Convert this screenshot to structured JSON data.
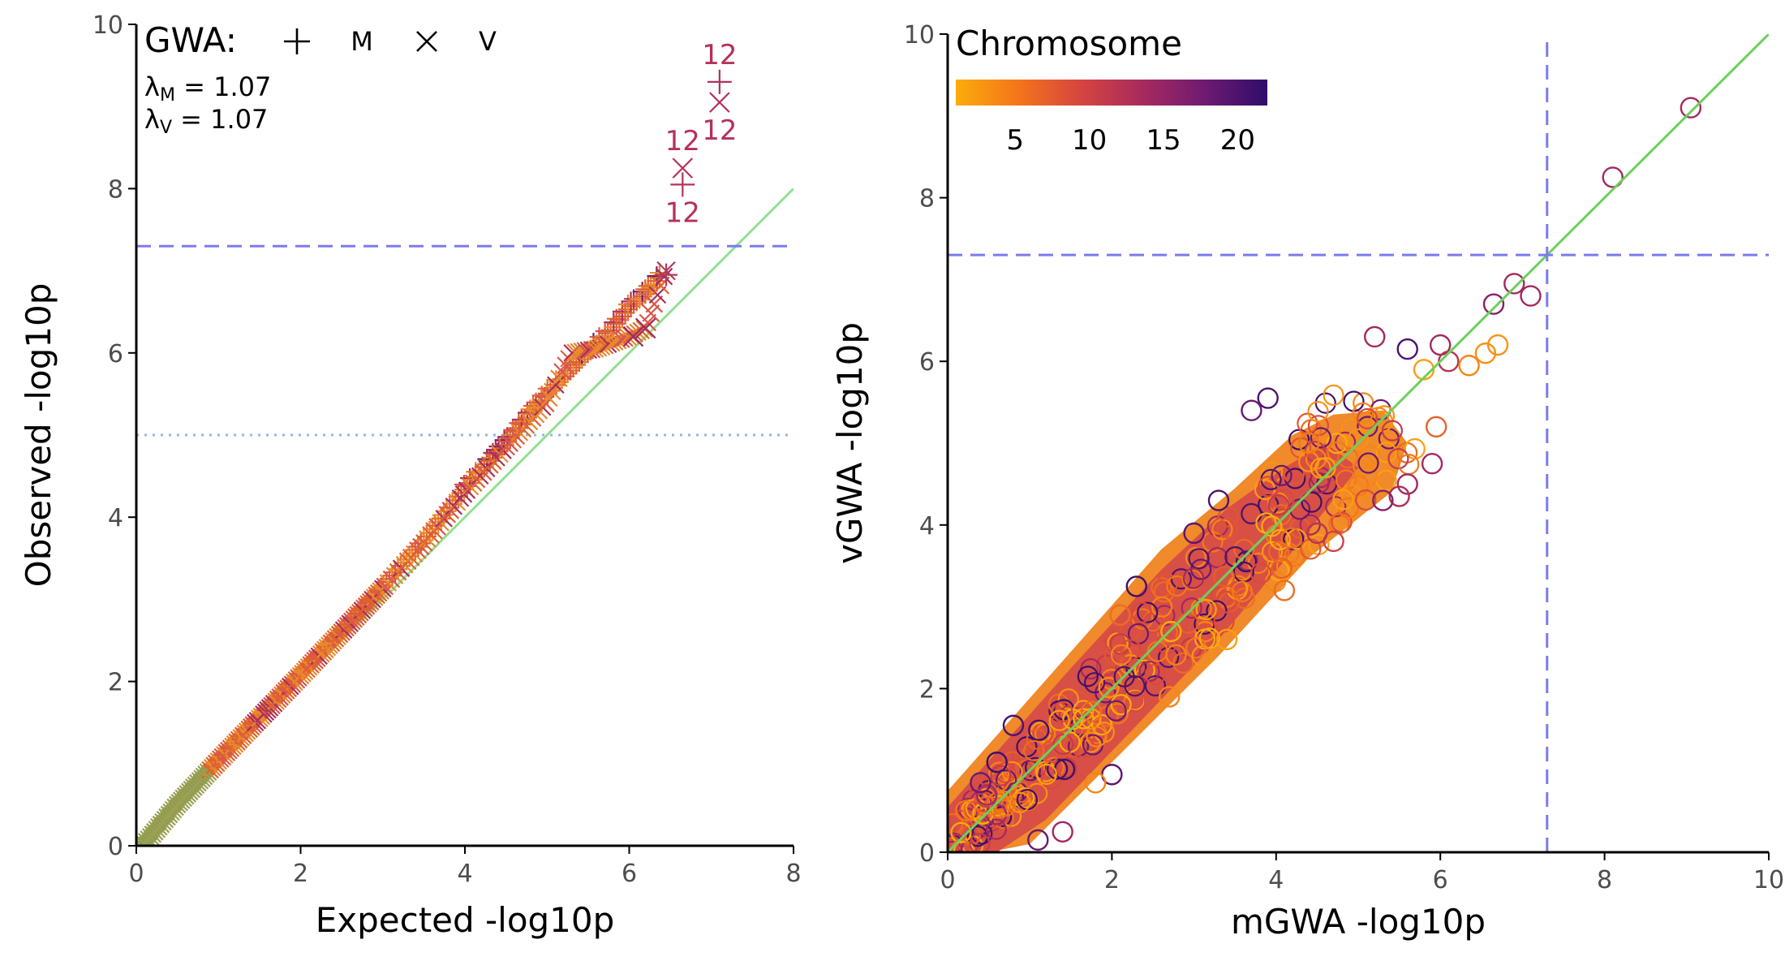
{
  "chart_data": [
    {
      "type": "scatter",
      "subtype": "qq-plot",
      "xlabel": "Expected -log10p",
      "ylabel": "Observed -log10p",
      "xlim": [
        0,
        8
      ],
      "ylim": [
        0,
        10
      ],
      "xticks": [
        "0",
        "2",
        "4",
        "6",
        "8"
      ],
      "yticks": [
        "0",
        "2",
        "4",
        "6",
        "8",
        "10"
      ],
      "legend": {
        "title": "GWA:",
        "entries": [
          {
            "symbol": "+",
            "label": "M"
          },
          {
            "symbol": "×",
            "label": "V"
          }
        ],
        "placement": "top-left"
      },
      "lambda_m": "1.07",
      "lambda_v": "1.07",
      "reference_lines": [
        {
          "type": "diagonal",
          "color": "#90e090"
        },
        {
          "type": "horizontal",
          "y": 7.3,
          "style": "dashed",
          "color": "#7b7bef"
        },
        {
          "type": "horizontal",
          "y": 5.0,
          "style": "dotted",
          "color": "#93b6ea"
        }
      ],
      "series_m": [
        [
          0.2,
          0.16
        ],
        [
          0.5,
          0.52
        ],
        [
          1.0,
          1.05
        ],
        [
          1.5,
          1.58
        ],
        [
          2.0,
          2.1
        ],
        [
          2.5,
          2.62
        ],
        [
          3.0,
          3.16
        ],
        [
          3.5,
          3.72
        ],
        [
          4.0,
          4.35
        ],
        [
          4.5,
          4.9
        ],
        [
          5.0,
          5.5
        ],
        [
          5.5,
          6.0
        ],
        [
          5.8,
          6.3
        ],
        [
          6.0,
          6.55
        ],
        [
          6.2,
          6.72
        ],
        [
          6.4,
          6.95
        ],
        [
          6.65,
          8.05
        ],
        [
          7.1,
          9.3
        ]
      ],
      "series_v": [
        [
          0.2,
          0.14
        ],
        [
          0.5,
          0.5
        ],
        [
          1.0,
          1.03
        ],
        [
          1.5,
          1.55
        ],
        [
          2.0,
          2.07
        ],
        [
          2.5,
          2.6
        ],
        [
          3.0,
          3.13
        ],
        [
          3.5,
          3.68
        ],
        [
          4.0,
          4.3
        ],
        [
          4.5,
          4.85
        ],
        [
          5.0,
          5.4
        ],
        [
          5.3,
          6.0
        ],
        [
          5.6,
          6.05
        ],
        [
          6.0,
          6.2
        ],
        [
          6.2,
          6.3
        ],
        [
          6.45,
          7.0
        ],
        [
          6.65,
          8.25
        ],
        [
          7.1,
          9.05
        ]
      ],
      "annotations": [
        {
          "x": 6.65,
          "y": 8.25,
          "text": "12",
          "position": "above"
        },
        {
          "x": 6.65,
          "y": 8.05,
          "text": "12",
          "position": "below"
        },
        {
          "x": 7.1,
          "y": 9.3,
          "text": "12",
          "position": "above"
        },
        {
          "x": 7.1,
          "y": 9.05,
          "text": "12",
          "position": "below"
        }
      ]
    },
    {
      "type": "scatter",
      "xlabel": "mGWA -log10p",
      "ylabel": "vGWA -log10p",
      "xlim": [
        0,
        10
      ],
      "ylim": [
        0,
        10
      ],
      "xticks": [
        "0",
        "2",
        "4",
        "6",
        "8",
        "10"
      ],
      "yticks": [
        "0",
        "2",
        "4",
        "6",
        "8",
        "10"
      ],
      "colorbar": {
        "title": "Chromosome",
        "ticks": [
          "5",
          "10",
          "15",
          "20"
        ],
        "range": [
          1,
          22
        ],
        "colors": [
          "#fcac0c",
          "#f4751a",
          "#d6453f",
          "#a72a5e",
          "#6e1a72",
          "#2e0d6a"
        ],
        "placement": "top-left"
      },
      "reference_lines": [
        {
          "type": "diagonal",
          "color": "#6cd05c"
        },
        {
          "type": "horizontal",
          "y": 7.3,
          "style": "dashed",
          "color": "#7b7bef"
        },
        {
          "type": "vertical",
          "x": 7.3,
          "style": "dashed",
          "color": "#7b7bef"
        }
      ],
      "highlight_points": [
        [
          9.05,
          9.1,
          14
        ],
        [
          8.1,
          8.25,
          14
        ],
        [
          6.9,
          6.95,
          14
        ],
        [
          7.1,
          6.8,
          14
        ],
        [
          6.65,
          6.7,
          16
        ],
        [
          5.2,
          6.3,
          14
        ],
        [
          5.6,
          6.15,
          20
        ],
        [
          6.0,
          6.2,
          14
        ],
        [
          6.1,
          6.0,
          12
        ],
        [
          6.7,
          6.2,
          3
        ],
        [
          6.55,
          6.1,
          3
        ],
        [
          6.35,
          5.95,
          4
        ],
        [
          5.9,
          4.75,
          14
        ],
        [
          5.6,
          4.5,
          14
        ],
        [
          5.5,
          4.35,
          13
        ],
        [
          5.3,
          4.3,
          16
        ],
        [
          4.7,
          3.8,
          10
        ],
        [
          4.5,
          3.9,
          12
        ],
        [
          3.9,
          5.55,
          20
        ],
        [
          3.7,
          5.4,
          18
        ],
        [
          3.3,
          4.3,
          20
        ],
        [
          3.0,
          3.9,
          19
        ],
        [
          2.3,
          3.25,
          21
        ],
        [
          1.1,
          0.15,
          18
        ],
        [
          1.4,
          0.25,
          14
        ],
        [
          0.8,
          1.55,
          20
        ],
        [
          0.6,
          1.1,
          21
        ],
        [
          0.4,
          0.85,
          18
        ],
        [
          2.0,
          0.95,
          19
        ],
        [
          1.8,
          0.85,
          4
        ],
        [
          4.1,
          3.2,
          6
        ],
        [
          4.6,
          4.7,
          2
        ],
        [
          5.0,
          5.05,
          3
        ],
        [
          4.4,
          5.0,
          5
        ],
        [
          5.8,
          5.9,
          2
        ],
        [
          5.95,
          5.2,
          7
        ],
        [
          2.7,
          1.9,
          4
        ],
        [
          3.1,
          2.4,
          3
        ],
        [
          3.4,
          2.6,
          2
        ],
        [
          2.1,
          2.9,
          6
        ]
      ]
    }
  ]
}
